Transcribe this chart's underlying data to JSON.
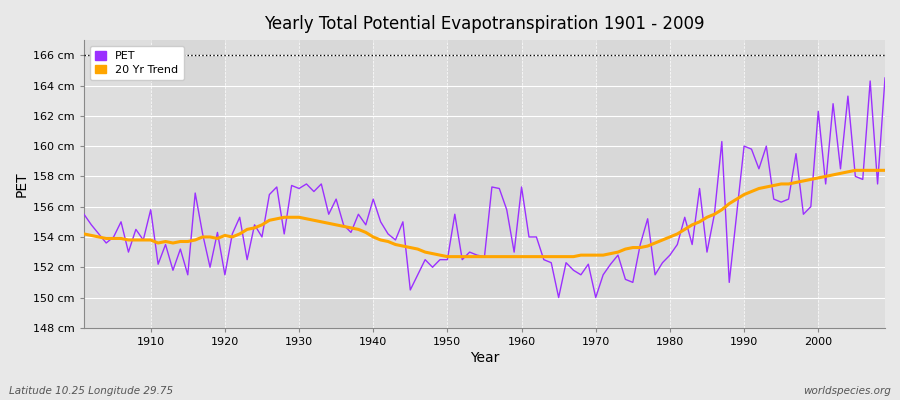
{
  "title": "Yearly Total Potential Evapotranspiration 1901 - 2009",
  "xlabel": "Year",
  "ylabel": "PET",
  "subtitle_left": "Latitude 10.25 Longitude 29.75",
  "subtitle_right": "worldspecies.org",
  "ylim": [
    148,
    167
  ],
  "yticks": [
    148,
    150,
    152,
    154,
    156,
    158,
    160,
    162,
    164,
    166
  ],
  "ytick_labels": [
    "148 cm",
    "150 cm",
    "152 cm",
    "154 cm",
    "156 cm",
    "158 cm",
    "160 cm",
    "162 cm",
    "164 cm",
    "166 cm"
  ],
  "xlim": [
    1901,
    2009
  ],
  "xticks": [
    1910,
    1920,
    1930,
    1940,
    1950,
    1960,
    1970,
    1980,
    1990,
    2000
  ],
  "pet_color": "#9B30FF",
  "trend_color": "#FFA500",
  "bg_color": "#E8E8E8",
  "plot_bg_color": "#DCDCDC",
  "grid_color": "#FFFFFF",
  "dotted_line_value": 166,
  "pet_years": [
    1901,
    1902,
    1903,
    1904,
    1905,
    1906,
    1907,
    1908,
    1909,
    1910,
    1911,
    1912,
    1913,
    1914,
    1915,
    1916,
    1917,
    1918,
    1919,
    1920,
    1921,
    1922,
    1923,
    1924,
    1925,
    1926,
    1927,
    1928,
    1929,
    1930,
    1931,
    1932,
    1933,
    1934,
    1935,
    1936,
    1937,
    1938,
    1939,
    1940,
    1941,
    1942,
    1943,
    1944,
    1945,
    1946,
    1947,
    1948,
    1949,
    1950,
    1951,
    1952,
    1953,
    1954,
    1955,
    1956,
    1957,
    1958,
    1959,
    1960,
    1961,
    1962,
    1963,
    1964,
    1965,
    1966,
    1967,
    1968,
    1969,
    1970,
    1971,
    1972,
    1973,
    1974,
    1975,
    1976,
    1977,
    1978,
    1979,
    1980,
    1981,
    1982,
    1983,
    1984,
    1985,
    1986,
    1987,
    1988,
    1989,
    1990,
    1991,
    1992,
    1993,
    1994,
    1995,
    1996,
    1997,
    1998,
    1999,
    2000,
    2001,
    2002,
    2003,
    2004,
    2005,
    2006,
    2007,
    2008,
    2009
  ],
  "pet_values": [
    155.5,
    154.8,
    154.2,
    153.6,
    154.0,
    155.0,
    153.0,
    154.5,
    153.8,
    155.8,
    152.2,
    153.5,
    151.8,
    153.2,
    151.5,
    156.9,
    154.2,
    152.0,
    154.3,
    151.5,
    154.2,
    155.3,
    152.5,
    154.8,
    154.0,
    156.8,
    157.3,
    154.2,
    157.4,
    157.2,
    157.5,
    157.0,
    157.5,
    155.5,
    156.5,
    154.8,
    154.3,
    155.5,
    154.8,
    156.5,
    155.0,
    154.2,
    153.8,
    155.0,
    150.5,
    151.5,
    152.5,
    152.0,
    152.5,
    152.5,
    155.5,
    152.5,
    153.0,
    152.8,
    152.7,
    157.3,
    157.2,
    155.8,
    153.0,
    157.3,
    154.0,
    154.0,
    152.5,
    152.3,
    150.0,
    152.3,
    151.8,
    151.5,
    152.2,
    150.0,
    151.5,
    152.2,
    152.8,
    151.2,
    151.0,
    153.5,
    155.2,
    151.5,
    152.3,
    152.8,
    153.5,
    155.3,
    153.5,
    157.2,
    153.0,
    155.5,
    160.3,
    151.0,
    155.5,
    160.0,
    159.8,
    158.5,
    160.0,
    156.5,
    156.3,
    156.5,
    159.5,
    155.5,
    156.0,
    162.3,
    157.5,
    162.8,
    158.5,
    163.3,
    158.0,
    157.8,
    164.3,
    157.5,
    164.5
  ],
  "trend_years": [
    1901,
    1902,
    1903,
    1904,
    1905,
    1906,
    1907,
    1908,
    1909,
    1910,
    1911,
    1912,
    1913,
    1914,
    1915,
    1916,
    1917,
    1918,
    1919,
    1920,
    1921,
    1922,
    1923,
    1924,
    1925,
    1926,
    1927,
    1928,
    1929,
    1930,
    1931,
    1932,
    1933,
    1934,
    1935,
    1936,
    1937,
    1938,
    1939,
    1940,
    1941,
    1942,
    1943,
    1944,
    1945,
    1946,
    1947,
    1948,
    1949,
    1950,
    1951,
    1952,
    1953,
    1954,
    1955,
    1956,
    1957,
    1958,
    1959,
    1960,
    1961,
    1962,
    1963,
    1964,
    1965,
    1966,
    1967,
    1968,
    1969,
    1970,
    1971,
    1972,
    1973,
    1974,
    1975,
    1976,
    1977,
    1978,
    1979,
    1980,
    1981,
    1982,
    1983,
    1984,
    1985,
    1986,
    1987,
    1988,
    1989,
    1990,
    1991,
    1992,
    1993,
    1994,
    1995,
    1996,
    1997,
    1998,
    1999,
    2000,
    2001,
    2002,
    2003,
    2004,
    2005,
    2006,
    2007,
    2008,
    2009
  ],
  "trend_values": [
    154.2,
    154.1,
    154.0,
    153.9,
    153.9,
    153.9,
    153.8,
    153.8,
    153.8,
    153.8,
    153.6,
    153.7,
    153.6,
    153.7,
    153.7,
    153.8,
    154.0,
    154.0,
    153.9,
    154.1,
    154.0,
    154.2,
    154.5,
    154.6,
    154.8,
    155.1,
    155.2,
    155.3,
    155.3,
    155.3,
    155.2,
    155.1,
    155.0,
    154.9,
    154.8,
    154.7,
    154.6,
    154.5,
    154.3,
    154.0,
    153.8,
    153.7,
    153.5,
    153.4,
    153.3,
    153.2,
    153.0,
    152.9,
    152.8,
    152.7,
    152.7,
    152.7,
    152.7,
    152.7,
    152.7,
    152.7,
    152.7,
    152.7,
    152.7,
    152.7,
    152.7,
    152.7,
    152.7,
    152.7,
    152.7,
    152.7,
    152.7,
    152.8,
    152.8,
    152.8,
    152.8,
    152.9,
    153.0,
    153.2,
    153.3,
    153.3,
    153.4,
    153.6,
    153.8,
    154.0,
    154.2,
    154.5,
    154.8,
    155.0,
    155.3,
    155.5,
    155.8,
    156.2,
    156.5,
    156.8,
    157.0,
    157.2,
    157.3,
    157.4,
    157.5,
    157.5,
    157.6,
    157.7,
    157.8,
    157.9,
    158.0,
    158.1,
    158.2,
    158.3,
    158.4,
    158.4,
    158.4,
    158.4,
    158.4
  ]
}
